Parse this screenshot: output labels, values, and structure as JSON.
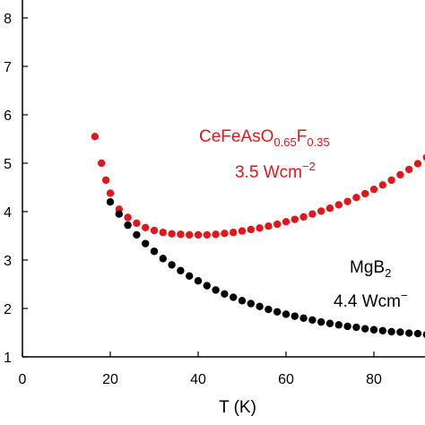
{
  "chart_data": {
    "type": "scatter",
    "x_label": "T (K)",
    "xlim": [
      0,
      91.6
    ],
    "xticks": [
      0,
      20,
      40,
      60,
      80
    ],
    "ylim": [
      1,
      8
    ],
    "yticks": [
      1,
      2,
      3,
      4,
      5,
      6,
      7,
      8
    ],
    "series": [
      {
        "name": "CeFeAsO0.65F0.35",
        "color": "#e3161b",
        "label_parts": [
          {
            "text": "CeFeAsO"
          },
          {
            "text": "0.65",
            "sub": true
          },
          {
            "text": "F"
          },
          {
            "text": "0.35",
            "sub": true
          }
        ],
        "power_parts": [
          {
            "text": "3.5 Wcm"
          },
          {
            "text": "−2",
            "sup": true
          }
        ],
        "x": [
          16.5,
          18,
          19,
          20,
          22,
          24,
          26,
          28,
          30,
          32,
          34,
          36,
          38,
          40,
          42,
          44,
          46,
          48,
          50,
          52,
          54,
          56,
          58,
          60,
          62,
          64,
          66,
          68,
          70,
          72,
          74,
          76,
          78,
          80,
          82,
          84,
          86,
          88,
          90,
          92
        ],
        "values": [
          5.55,
          5.0,
          4.65,
          4.38,
          4.05,
          3.88,
          3.76,
          3.67,
          3.61,
          3.57,
          3.54,
          3.53,
          3.52,
          3.52,
          3.52,
          3.53,
          3.55,
          3.57,
          3.6,
          3.63,
          3.66,
          3.7,
          3.74,
          3.79,
          3.84,
          3.89,
          3.95,
          4.01,
          4.07,
          4.14,
          4.21,
          4.29,
          4.37,
          4.46,
          4.55,
          4.65,
          4.76,
          4.87,
          4.99,
          5.12
        ]
      },
      {
        "name": "MgB2",
        "color": "#000000",
        "label_parts": [
          {
            "text": "MgB"
          },
          {
            "text": "2",
            "sub": true
          }
        ],
        "power_parts": [
          {
            "text": "4.4 Wcm"
          },
          {
            "text": "−",
            "sup": true
          }
        ],
        "x": [
          20,
          22,
          24,
          26,
          28,
          30,
          32,
          34,
          36,
          38,
          40,
          42,
          44,
          46,
          48,
          50,
          52,
          54,
          56,
          58,
          60,
          62,
          64,
          66,
          68,
          70,
          72,
          74,
          76,
          78,
          80,
          82,
          84,
          86,
          88,
          90,
          92
        ],
        "values": [
          4.2,
          3.95,
          3.72,
          3.52,
          3.34,
          3.18,
          3.03,
          2.9,
          2.78,
          2.67,
          2.57,
          2.47,
          2.38,
          2.3,
          2.23,
          2.16,
          2.1,
          2.04,
          1.98,
          1.93,
          1.88,
          1.84,
          1.8,
          1.76,
          1.72,
          1.69,
          1.66,
          1.63,
          1.61,
          1.58,
          1.56,
          1.54,
          1.52,
          1.51,
          1.49,
          1.48,
          1.46
        ]
      }
    ]
  }
}
